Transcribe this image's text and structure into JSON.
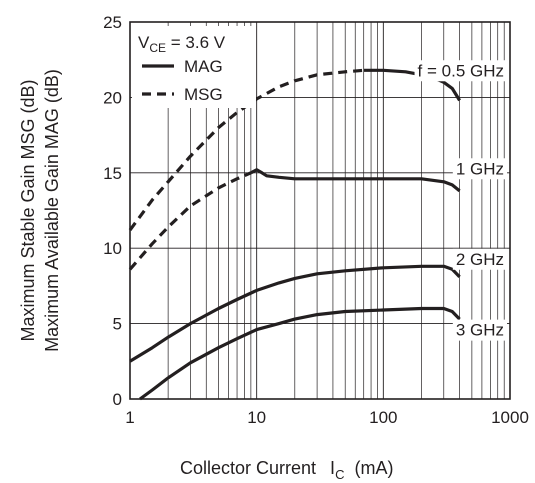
{
  "chart_data": {
    "type": "line",
    "title": "",
    "xlabel": "Collector Current",
    "xlabel_symbol": "I",
    "xlabel_sub": "C",
    "xlabel_unit": "(mA)",
    "ylabel_lines": [
      "Maximum Stable Gain   MSG  (dB)",
      "Maximum Available Gain   MAG  (dB)"
    ],
    "x_scale": "log",
    "xlim": [
      1,
      1000
    ],
    "ylim": [
      0,
      25
    ],
    "x_ticks": [
      1,
      10,
      100,
      1000
    ],
    "x_tick_labels": [
      "1",
      "10",
      "100",
      "1000"
    ],
    "y_ticks": [
      0,
      5,
      10,
      15,
      20,
      25
    ],
    "y_tick_labels": [
      "0",
      "5",
      "10",
      "15",
      "20",
      "25"
    ],
    "grid": true,
    "condition": {
      "prefix": "V",
      "sub": "CE",
      "text": " = 3.6 V"
    },
    "legend": [
      {
        "label": "MAG",
        "style": "solid"
      },
      {
        "label": "MSG",
        "style": "dashed"
      }
    ],
    "series": [
      {
        "name": "f = 0.5 GHz",
        "label": "f = 0.5 GHz",
        "msg": {
          "x": [
            1,
            1.5,
            2,
            3,
            5,
            7,
            10,
            15,
            20,
            30,
            50,
            70
          ],
          "y": [
            11.2,
            13.2,
            14.4,
            16.1,
            18.0,
            19.0,
            19.9,
            20.7,
            21.1,
            21.5,
            21.7,
            21.8
          ]
        },
        "mag": {
          "x": [
            70,
            100,
            150,
            200,
            250,
            300,
            350,
            400
          ],
          "y": [
            21.8,
            21.8,
            21.7,
            21.5,
            21.3,
            21.0,
            20.6,
            19.8
          ]
        }
      },
      {
        "name": "1 GHz",
        "label": "1 GHz",
        "msg": {
          "x": [
            1,
            1.5,
            2,
            3,
            5,
            7,
            9
          ],
          "y": [
            8.6,
            10.3,
            11.4,
            12.8,
            14.0,
            14.6,
            15.0
          ]
        },
        "mag": {
          "x": [
            9,
            10,
            11,
            12,
            15,
            20,
            30,
            50,
            100,
            200,
            300,
            350,
            400
          ],
          "y": [
            15.0,
            15.2,
            15.0,
            14.8,
            14.7,
            14.6,
            14.6,
            14.6,
            14.6,
            14.6,
            14.4,
            14.2,
            13.8
          ]
        }
      },
      {
        "name": "2 GHz",
        "label": "2 GHz",
        "msg": {
          "x": [],
          "y": []
        },
        "mag": {
          "x": [
            1,
            1.5,
            2,
            3,
            5,
            7,
            10,
            15,
            20,
            30,
            50,
            100,
            200,
            300,
            350,
            400
          ],
          "y": [
            2.5,
            3.4,
            4.1,
            5.0,
            6.0,
            6.6,
            7.2,
            7.7,
            8.0,
            8.3,
            8.5,
            8.7,
            8.8,
            8.8,
            8.6,
            8.1
          ]
        }
      },
      {
        "name": "3 GHz",
        "label": "3 GHz",
        "msg": {
          "x": [],
          "y": []
        },
        "mag": {
          "x": [
            1.2,
            1.5,
            2,
            3,
            5,
            7,
            10,
            15,
            20,
            30,
            50,
            100,
            200,
            300,
            350,
            400
          ],
          "y": [
            0,
            0.6,
            1.4,
            2.4,
            3.4,
            4.0,
            4.6,
            5.0,
            5.3,
            5.6,
            5.8,
            5.9,
            6.0,
            6.0,
            5.8,
            5.3
          ]
        }
      }
    ],
    "label_values": [
      {
        "text": "f = 0.5 GHz",
        "y": 21.8
      },
      {
        "text": "1 GHz",
        "y": 15.3
      },
      {
        "text": "2 GHz",
        "y": 9.3
      },
      {
        "text": "3 GHz",
        "y": 4.6
      }
    ]
  }
}
